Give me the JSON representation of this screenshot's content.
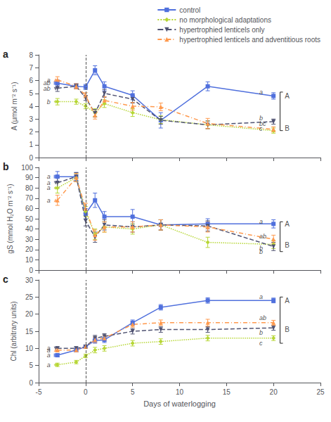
{
  "chart_data": {
    "type": "line",
    "xlabel": "Days of waterlogging",
    "xlim": [
      -5,
      25
    ],
    "xticks": [
      -5,
      0,
      5,
      10,
      15,
      20,
      25
    ],
    "grid": false,
    "legend": "upper right",
    "vline_x": 0,
    "series": [
      {
        "name": "control",
        "marker": "square",
        "line_style": "solid"
      },
      {
        "name": "no morphological adaptations",
        "marker": "diamond",
        "line_style": "dotted"
      },
      {
        "name": "hypertrophied lenticels only",
        "marker": "triangle-down",
        "line_style": "dashed"
      },
      {
        "name": "hypertrophied lenticels and adventitious roots",
        "marker": "triangle",
        "line_style": "dashdot"
      }
    ],
    "panels": [
      {
        "title": "a",
        "ylabel": "A (μmol m⁻² s⁻¹)",
        "ylim": [
          0,
          8
        ],
        "yticks": [
          0,
          1,
          2,
          3,
          4,
          5,
          6,
          7,
          8
        ],
        "tick_labels": "y",
        "series": [
          {
            "x": [
              -3,
              -1,
              0,
              1,
              2,
              5,
              8,
              13,
              20
            ],
            "values": [
              5.8,
              5.55,
              5.5,
              6.8,
              5.55,
              4.85,
              2.9,
              5.55,
              4.8
            ],
            "errors": [
              0.25,
              0.2,
              0.2,
              0.35,
              0.35,
              0.35,
              0.6,
              0.35,
              0.25
            ],
            "pre_label": {
              "text": "ab",
              "x": -3.6,
              "y": 5.8
            },
            "post_label": {
              "text": "a",
              "x": 18.5,
              "y": 5.1
            }
          },
          {
            "x": [
              -3,
              -1,
              0,
              1,
              2,
              5,
              8,
              13,
              20
            ],
            "values": [
              4.35,
              4.35,
              4.0,
              3.5,
              4.2,
              3.5,
              2.95,
              2.55,
              2.1
            ],
            "errors": [
              0.25,
              0.2,
              0.2,
              0.3,
              0.3,
              0.3,
              0.3,
              0.3,
              0.2
            ],
            "pre_label": {
              "text": "b",
              "x": -3.6,
              "y": 4.35
            },
            "post_label": {
              "text": "c",
              "x": 18.5,
              "y": 2.25
            }
          },
          {
            "x": [
              -3,
              -1,
              0,
              1,
              2,
              5,
              8,
              13,
              20
            ],
            "values": [
              5.4,
              5.55,
              4.65,
              3.45,
              5.0,
              4.55,
              2.9,
              2.55,
              2.8
            ],
            "errors": [
              0.25,
              0.2,
              0.2,
              0.3,
              0.3,
              0.3,
              0.3,
              0.3,
              0.2
            ],
            "pre_label": {
              "text": "ab",
              "x": -3.6,
              "y": 5.35
            },
            "post_label": {
              "text": "bc",
              "x": 18.5,
              "y": 2.65
            }
          },
          {
            "x": [
              -3,
              -1,
              0,
              1,
              2,
              5,
              8,
              13,
              20
            ],
            "values": [
              6.05,
              5.55,
              4.85,
              3.3,
              4.45,
              4.0,
              3.95,
              2.65,
              2.2
            ],
            "errors": [
              0.25,
              0.2,
              0.2,
              0.3,
              0.3,
              0.3,
              0.3,
              0.4,
              0.2
            ],
            "pre_label": {
              "text": "a",
              "x": -3.6,
              "y": 6.05
            },
            "post_label": {
              "text": "b",
              "x": 18.5,
              "y": 3.05
            }
          }
        ],
        "group_labels": [
          {
            "text": "A",
            "x": 21.2,
            "y": 4.8
          },
          {
            "text": "B",
            "x": 21.2,
            "y": 2.3
          }
        ],
        "bracket": {
          "top": 5.1,
          "bottom": 2.1
        }
      },
      {
        "title": "b",
        "ylabel": "gS (mmol H₂O m⁻² s⁻¹)",
        "ylim": [
          0,
          100
        ],
        "yticks": [
          0,
          10,
          20,
          30,
          40,
          50,
          60,
          70,
          80,
          90,
          100
        ],
        "tick_labels": "y",
        "series": [
          {
            "x": [
              -3,
              -1,
              0,
              1,
              2,
              5,
              8,
              13,
              20
            ],
            "values": [
              91,
              91,
              55,
              68,
              52,
              52,
              44,
              45,
              45
            ],
            "errors": [
              5,
              4,
              5,
              7,
              5,
              7,
              5,
              5,
              4
            ],
            "pre_label": {
              "text": "a",
              "x": -3.6,
              "y": 91
            },
            "post_label": {
              "text": "a",
              "x": 18.5,
              "y": 47
            }
          },
          {
            "x": [
              -3,
              -1,
              0,
              1,
              2,
              5,
              8,
              13,
              20
            ],
            "values": [
              80,
              90,
              57,
              35,
              42,
              40,
              44,
              27,
              25
            ],
            "errors": [
              5,
              4,
              5,
              5,
              5,
              5,
              5,
              5,
              4
            ],
            "pre_label": {
              "text": "a",
              "x": -3.6,
              "y": 80
            },
            "post_label": {
              "text": "b",
              "x": 18.5,
              "y": 21
            }
          },
          {
            "x": [
              -3,
              -1,
              0,
              1,
              2,
              5,
              8,
              13,
              20
            ],
            "values": [
              85,
              91,
              48,
              32,
              44,
              42,
              44,
              43,
              23
            ],
            "errors": [
              5,
              4,
              5,
              5,
              5,
              5,
              5,
              5,
              4
            ],
            "pre_label": {
              "text": "a",
              "x": -3.6,
              "y": 85
            },
            "post_label": {
              "text": "b",
              "x": 18.5,
              "y": 18
            }
          },
          {
            "x": [
              -3,
              -1,
              0,
              1,
              2,
              5,
              8,
              13,
              20
            ],
            "values": [
              68,
              90,
              60,
              34,
              42,
              42,
              44,
              42,
              30
            ],
            "errors": [
              5,
              4,
              5,
              5,
              5,
              5,
              5,
              5,
              4
            ],
            "pre_label": {
              "text": "a",
              "x": -3.6,
              "y": 68
            },
            "post_label": {
              "text": "ab",
              "x": 18.5,
              "y": 33
            }
          }
        ],
        "group_labels": [
          {
            "text": "A",
            "x": 21.2,
            "y": 45
          },
          {
            "text": "B",
            "x": 21.2,
            "y": 24
          }
        ],
        "bracket": {
          "top": 47,
          "bottom": 18
        }
      },
      {
        "title": "c",
        "ylabel": "Chl (arbitrary units)",
        "ylim": [
          0,
          30
        ],
        "yticks": [
          0,
          5,
          10,
          15,
          20,
          25,
          30
        ],
        "series": [
          {
            "x": [
              -3,
              -1,
              0,
              1,
              2,
              5,
              8,
              13,
              20
            ],
            "values": [
              8.0,
              9.5,
              10.5,
              12.3,
              12.5,
              17.5,
              22.0,
              24.0,
              24.0
            ],
            "errors": [
              0.5,
              0.5,
              0.5,
              0.8,
              0.8,
              0.8,
              0.8,
              0.8,
              0.7
            ],
            "pre_label": {
              "text": "a",
              "x": -3.6,
              "y": 8.0
            },
            "post_label": {
              "text": "a",
              "x": 18.5,
              "y": 25.0
            }
          },
          {
            "x": [
              -3,
              -1,
              0,
              1,
              2,
              5,
              8,
              13,
              20
            ],
            "values": [
              5.2,
              6.0,
              7.8,
              9.5,
              10.0,
              11.5,
              12.0,
              13.0,
              13.0
            ],
            "errors": [
              0.5,
              0.5,
              0.5,
              0.8,
              0.8,
              0.8,
              0.8,
              0.8,
              0.7
            ],
            "pre_label": {
              "text": "a",
              "x": -3.6,
              "y": 5.2
            },
            "post_label": {
              "text": "c",
              "x": 18.5,
              "y": 11.5
            }
          },
          {
            "x": [
              -3,
              -1,
              0,
              1,
              2,
              5,
              8,
              13,
              20
            ],
            "values": [
              10.0,
              10.0,
              10.5,
              13.0,
              13.5,
              15.0,
              15.5,
              15.5,
              16.0
            ],
            "errors": [
              0.5,
              0.5,
              0.5,
              0.8,
              0.8,
              0.8,
              0.8,
              0.8,
              0.7
            ],
            "pre_label": {
              "text": "a",
              "x": -3.6,
              "y": 10.0
            },
            "post_label": {
              "text": "b",
              "x": 18.5,
              "y": 14.5
            }
          },
          {
            "x": [
              -3,
              -1,
              0,
              1,
              2,
              5,
              8,
              13,
              20
            ],
            "values": [
              9.5,
              9.5,
              10.5,
              12.5,
              13.0,
              17.0,
              17.5,
              17.5,
              17.5
            ],
            "errors": [
              0.5,
              0.5,
              0.5,
              0.8,
              0.8,
              0.8,
              0.8,
              1.0,
              0.7
            ],
            "pre_label": {
              "text": "a",
              "x": -3.6,
              "y": 9.5
            },
            "post_label": {
              "text": "ab",
              "x": 18.5,
              "y": 19.0
            }
          }
        ],
        "group_labels": [
          {
            "text": "A",
            "x": 21.2,
            "y": 24.0
          },
          {
            "text": "B",
            "x": 21.2,
            "y": 15.5
          }
        ],
        "bracket": {
          "top": 25.0,
          "bottom": 11.5
        }
      }
    ]
  }
}
